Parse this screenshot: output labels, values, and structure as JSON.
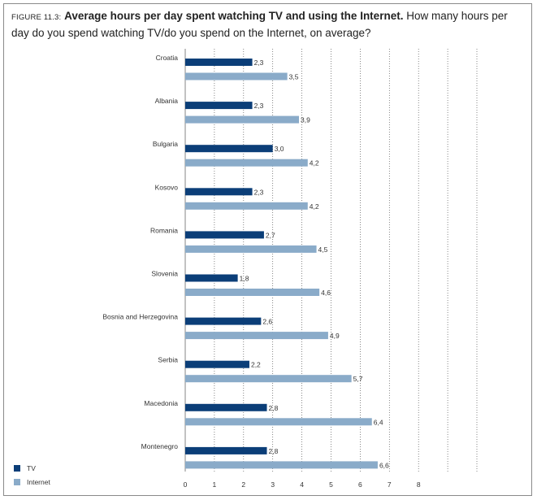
{
  "figure_label": "FIGURE 11.3:",
  "title_bold": "Average hours per day spent watching TV and using the Internet.",
  "title_rest": "How many hours per day do you spend watching TV/do you spend on the Internet, on average?",
  "chart_data": {
    "type": "bar",
    "orientation": "horizontal",
    "title": "Average hours per day spent watching TV and using the Internet.",
    "subtitle": "How many hours per day do you spend watching TV/do you spend on the Internet, on average?",
    "categories": [
      "Croatia",
      "Albania",
      "Bulgaria",
      "Kosovo",
      "Romania",
      "Slovenia",
      "Bosnia and Herzegovina",
      "Serbia",
      "Macedonia",
      "Montenegro"
    ],
    "series": [
      {
        "name": "TV",
        "color": "#0b3e78",
        "values": [
          2.3,
          2.3,
          3.0,
          2.3,
          2.7,
          1.8,
          2.6,
          2.2,
          2.8,
          2.8
        ],
        "labels": [
          "2,3",
          "2,3",
          "3,0",
          "2,3",
          "2,7",
          "1,8",
          "2,6",
          "2,2",
          "2,8",
          "2,8"
        ]
      },
      {
        "name": "Internet",
        "color": "#8aabc9",
        "values": [
          3.5,
          3.9,
          4.2,
          4.2,
          4.5,
          4.6,
          4.9,
          5.7,
          6.4,
          6.6
        ],
        "labels": [
          "3,5",
          "3,9",
          "4,2",
          "4,2",
          "4,5",
          "4,6",
          "4,9",
          "5,7",
          "6,4",
          "6,6"
        ]
      }
    ],
    "xlim": [
      0,
      10
    ],
    "xticks": [
      0,
      1,
      2,
      3,
      4,
      5,
      6,
      7,
      8
    ],
    "grid": "vertical dotted",
    "legend": "bottom-left"
  }
}
